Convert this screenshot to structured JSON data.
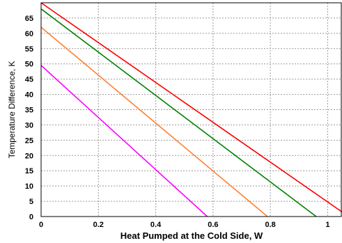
{
  "chart_data": {
    "type": "line",
    "title": "",
    "xlabel": "Heat Pumped at the Cold Side, W",
    "ylabel": "Temperature Difference, K",
    "xlim": [
      0,
      1.05
    ],
    "ylim": [
      0,
      70
    ],
    "xticks": [
      0,
      0.2,
      0.4,
      0.6,
      0.8,
      1
    ],
    "xtick_labels": [
      "0",
      "0.2",
      "0.4",
      "0.6",
      "0.8",
      "1"
    ],
    "yticks": [
      0,
      5,
      10,
      15,
      20,
      25,
      30,
      35,
      40,
      45,
      50,
      55,
      60,
      65
    ],
    "ytick_labels": [
      "0",
      "5",
      "10",
      "15",
      "20",
      "25",
      "30",
      "35",
      "40",
      "45",
      "50",
      "55",
      "60",
      "65"
    ],
    "grid": true,
    "series": [
      {
        "color": "#ff0000",
        "x": [
          0,
          1.05
        ],
        "y": [
          70,
          1.5
        ]
      },
      {
        "color": "#008000",
        "x": [
          0,
          0.96
        ],
        "y": [
          68,
          0
        ]
      },
      {
        "color": "#ff8030",
        "x": [
          0,
          0.79
        ],
        "y": [
          62,
          0
        ]
      },
      {
        "color": "#ff00ff",
        "x": [
          0,
          0.58
        ],
        "y": [
          49.5,
          0
        ]
      }
    ]
  }
}
